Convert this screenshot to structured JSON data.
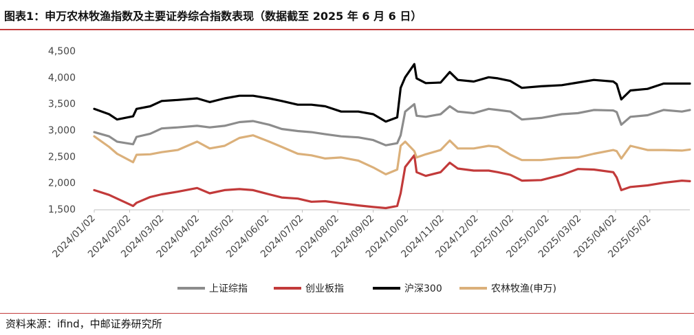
{
  "header": {
    "title": "图表1：申万农林牧渔指数及主要证券综合指数表现（数据截至 2025 年 6 月 6 日）"
  },
  "footer": {
    "source": "资料来源：ifind，中邮证券研究所"
  },
  "chart_data": {
    "type": "line",
    "title": "",
    "xlabel": "",
    "ylabel": "",
    "ylim": [
      1500,
      4500
    ],
    "yticks": [
      "1,500",
      "2,000",
      "2,500",
      "3,000",
      "3,500",
      "4,000",
      "4,500"
    ],
    "yticks_values": [
      1500,
      2000,
      2500,
      3000,
      3500,
      4000,
      4500
    ],
    "x_ticks": [
      "2024/01/02",
      "2024/02/02",
      "2024/03/02",
      "2024/04/02",
      "2024/05/02",
      "2024/06/02",
      "2024/07/02",
      "2024/08/02",
      "2024/09/02",
      "2024/10/02",
      "2024/11/02",
      "2024/12/02",
      "2025/01/02",
      "2025/02/02",
      "2025/03/02",
      "2025/04/02",
      "2025/05/02"
    ],
    "x_range": [
      "2024/01/02",
      "2025/06/06"
    ],
    "x": [
      "2024/01/02",
      "2024/01/15",
      "2024/01/22",
      "2024/02/05",
      "2024/02/08",
      "2024/02/20",
      "2024/03/01",
      "2024/03/15",
      "2024/04/01",
      "2024/04/12",
      "2024/04/25",
      "2024/05/08",
      "2024/05/20",
      "2024/06/03",
      "2024/06/14",
      "2024/06/28",
      "2024/07/10",
      "2024/07/22",
      "2024/08/05",
      "2024/08/20",
      "2024/09/02",
      "2024/09/13",
      "2024/09/23",
      "2024/09/26",
      "2024/09/30",
      "2024/10/08",
      "2024/10/10",
      "2024/10/18",
      "2024/10/31",
      "2024/11/08",
      "2024/11/15",
      "2024/11/29",
      "2024/12/12",
      "2024/12/20",
      "2024/12/31",
      "2025/01/10",
      "2025/01/27",
      "2025/02/14",
      "2025/02/28",
      "2025/03/14",
      "2025/03/31",
      "2025/04/03",
      "2025/04/07",
      "2025/04/15",
      "2025/04/30",
      "2025/05/14",
      "2025/05/30",
      "2025/06/06"
    ],
    "series": [
      {
        "name": "上证综指",
        "color": "#8c8c8c",
        "values": [
          2960,
          2880,
          2780,
          2730,
          2870,
          2930,
          3030,
          3050,
          3080,
          3050,
          3080,
          3150,
          3170,
          3100,
          3020,
          2980,
          2960,
          2920,
          2880,
          2860,
          2810,
          2710,
          2750,
          2900,
          3350,
          3490,
          3270,
          3250,
          3300,
          3450,
          3350,
          3320,
          3400,
          3380,
          3350,
          3200,
          3230,
          3300,
          3320,
          3380,
          3370,
          3340,
          3100,
          3250,
          3280,
          3380,
          3350,
          3380
        ]
      },
      {
        "name": "创业板指",
        "color": "#c23a3a",
        "values": [
          1860,
          1770,
          1700,
          1560,
          1620,
          1730,
          1780,
          1830,
          1900,
          1800,
          1860,
          1880,
          1860,
          1780,
          1720,
          1700,
          1640,
          1650,
          1610,
          1570,
          1540,
          1520,
          1560,
          1800,
          2300,
          2520,
          2200,
          2130,
          2200,
          2380,
          2270,
          2230,
          2230,
          2200,
          2150,
          2040,
          2050,
          2150,
          2260,
          2250,
          2200,
          2100,
          1860,
          1920,
          1950,
          2000,
          2040,
          2030
        ]
      },
      {
        "name": "沪深300",
        "color": "#000000",
        "values": [
          3400,
          3300,
          3200,
          3260,
          3400,
          3450,
          3550,
          3570,
          3600,
          3530,
          3600,
          3650,
          3650,
          3600,
          3550,
          3480,
          3480,
          3450,
          3350,
          3350,
          3300,
          3160,
          3240,
          3800,
          4000,
          4250,
          3980,
          3890,
          3900,
          4100,
          3950,
          3920,
          4000,
          3980,
          3930,
          3800,
          3830,
          3850,
          3900,
          3950,
          3920,
          3870,
          3580,
          3750,
          3780,
          3880,
          3880,
          3880
        ]
      },
      {
        "name": "农林牧渔(申万)",
        "color": "#dbb07a",
        "values": [
          2880,
          2680,
          2550,
          2390,
          2530,
          2540,
          2580,
          2620,
          2780,
          2650,
          2700,
          2850,
          2900,
          2780,
          2680,
          2550,
          2520,
          2460,
          2480,
          2420,
          2290,
          2160,
          2250,
          2700,
          2780,
          2600,
          2480,
          2540,
          2620,
          2800,
          2650,
          2650,
          2700,
          2680,
          2530,
          2430,
          2430,
          2470,
          2480,
          2550,
          2620,
          2600,
          2460,
          2700,
          2620,
          2620,
          2610,
          2630
        ]
      }
    ],
    "legend_position": "bottom",
    "grid": false
  }
}
